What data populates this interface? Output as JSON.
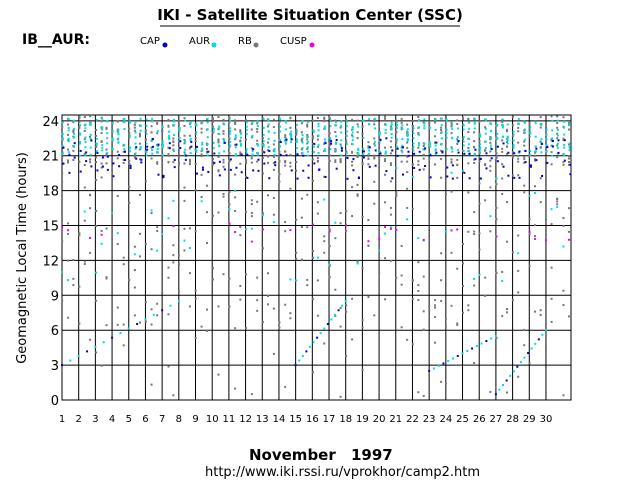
{
  "header": {
    "title": "IKI - Satellite Situation Center (SSC)",
    "satellite_label": "IB__AUR:"
  },
  "footer": {
    "month": "November",
    "year": "1997",
    "url": "http://www.iki.rssi.ru/vprokhor/camp2.htm"
  },
  "chart_data": {
    "type": "scatter",
    "title": "IKI - Satellite Situation Center (SSC)",
    "xlabel": "November 1997",
    "ylabel": "Geomagnetic Local Time (hours)",
    "xlim": [
      1,
      31.5
    ],
    "ylim": [
      0,
      24.5
    ],
    "x_ticks": [
      1,
      2,
      3,
      4,
      5,
      6,
      7,
      8,
      9,
      10,
      11,
      12,
      13,
      14,
      15,
      16,
      17,
      18,
      19,
      20,
      21,
      22,
      23,
      24,
      25,
      26,
      27,
      28,
      29,
      30
    ],
    "y_ticks": [
      0,
      3,
      6,
      9,
      12,
      15,
      18,
      21,
      24
    ],
    "grid": true,
    "legend_position": "top",
    "series": [
      {
        "name": "CAP",
        "color": "#0000cc",
        "region": "19-22 h band, sparse trend points"
      },
      {
        "name": "AUR",
        "color": "#00dddd",
        "region": "21-24 h dense band, scattered below"
      },
      {
        "name": "RB",
        "color": "#777777",
        "region": "20-24 h dense, scattered 0-21 h"
      },
      {
        "name": "CUSP",
        "color": "#ee00ee",
        "region": "near 14-15 h"
      }
    ],
    "diagonal_tracks": [
      {
        "x": [
          1,
          8
        ],
        "y": [
          3,
          8.5
        ]
      },
      {
        "x": [
          15,
          18
        ],
        "y": [
          3,
          8.5
        ]
      },
      {
        "x": [
          23,
          27
        ],
        "y": [
          2.5,
          5.5
        ]
      },
      {
        "x": [
          27,
          30
        ],
        "y": [
          0.5,
          6
        ]
      }
    ]
  }
}
